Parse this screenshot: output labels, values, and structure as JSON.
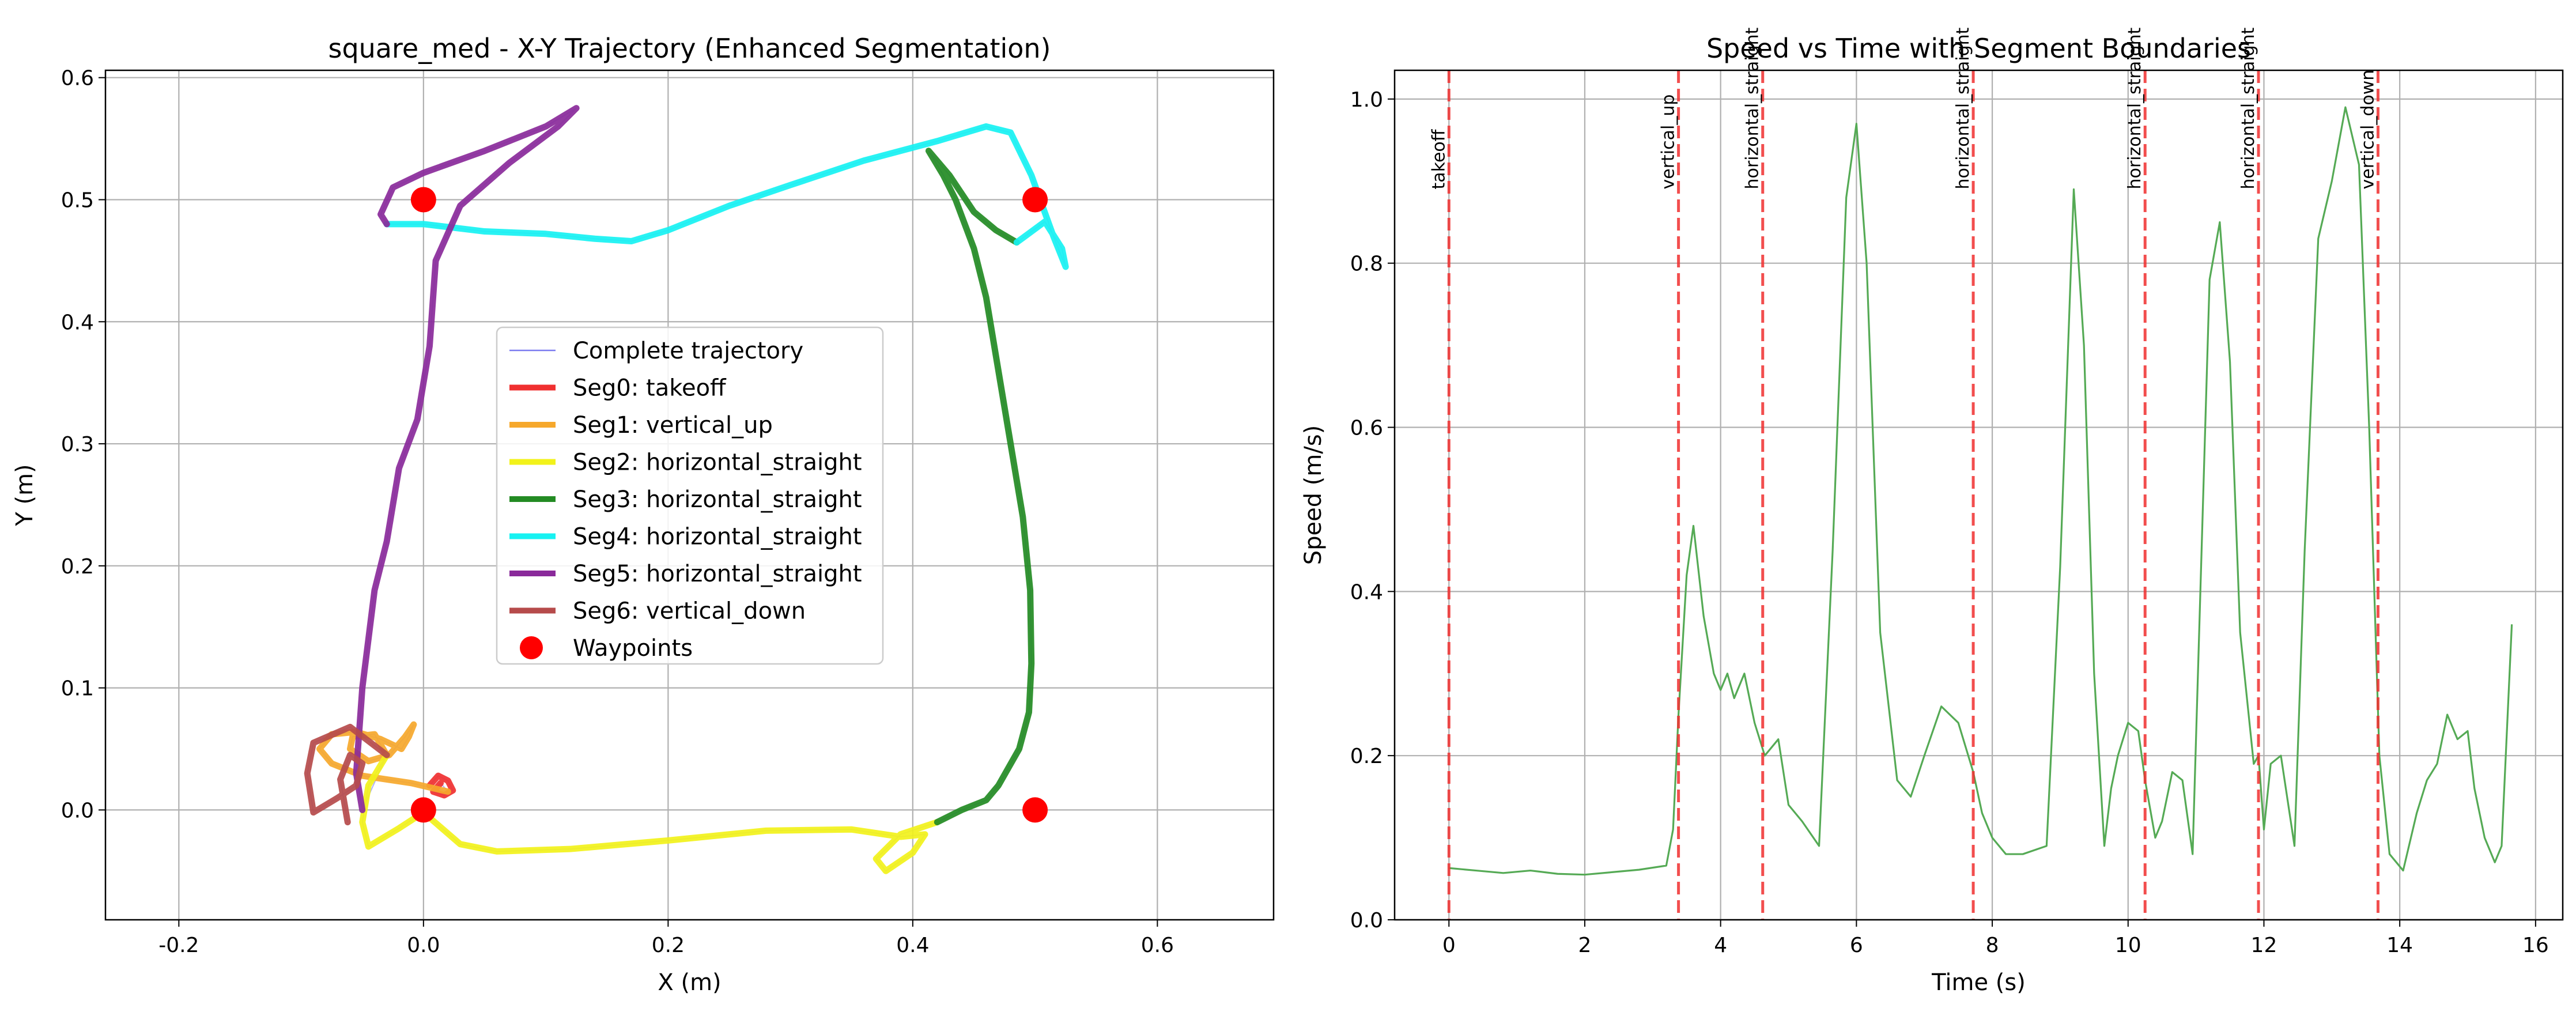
{
  "chart_data": [
    {
      "type": "line",
      "title": "square_med - X-Y Trajectory (Enhanced Segmentation)",
      "xlabel": "X (m)",
      "ylabel": "Y (m)",
      "xlim": [
        -0.26,
        0.695
      ],
      "ylim": [
        -0.09,
        0.606
      ],
      "xticks": [
        -0.2,
        0.0,
        0.2,
        0.4,
        0.6
      ],
      "yticks": [
        0.0,
        0.1,
        0.2,
        0.3,
        0.4,
        0.5,
        0.6
      ],
      "grid": true,
      "legend_position": "center",
      "legend": [
        "Complete trajectory",
        "Seg0: takeoff",
        "Seg1: vertical_up",
        "Seg2: horizontal_straight",
        "Seg3: horizontal_straight",
        "Seg4: horizontal_straight",
        "Seg5: horizontal_straight",
        "Seg6: vertical_down",
        "Waypoints"
      ],
      "complete_trajectory_color": "#7b7bf0",
      "series": [
        {
          "color": "#f03030",
          "points": [
            [
              0.005,
              0.02
            ],
            [
              0.012,
              0.028
            ],
            [
              0.02,
              0.024
            ],
            [
              0.024,
              0.016
            ],
            [
              0.017,
              0.012
            ],
            [
              0.008,
              0.015
            ],
            [
              0.014,
              0.022
            ]
          ]
        },
        {
          "color": "#f6a82b",
          "points": [
            [
              0.02,
              0.015
            ],
            [
              -0.01,
              0.022
            ],
            [
              -0.05,
              0.028
            ],
            [
              -0.075,
              0.038
            ],
            [
              -0.085,
              0.05
            ],
            [
              -0.075,
              0.062
            ],
            [
              -0.055,
              0.064
            ],
            [
              -0.035,
              0.058
            ],
            [
              -0.018,
              0.05
            ],
            [
              -0.012,
              0.06
            ],
            [
              -0.008,
              0.07
            ],
            [
              -0.015,
              0.06
            ],
            [
              -0.028,
              0.045
            ],
            [
              -0.045,
              0.04
            ],
            [
              -0.06,
              0.05
            ],
            [
              -0.058,
              0.06
            ],
            [
              -0.04,
              0.062
            ],
            [
              -0.03,
              0.045
            ]
          ]
        },
        {
          "color": "#f2f21a",
          "points": [
            [
              -0.03,
              0.045
            ],
            [
              -0.045,
              0.02
            ],
            [
              -0.05,
              -0.01
            ],
            [
              -0.045,
              -0.03
            ],
            [
              -0.02,
              -0.015
            ],
            [
              0.0,
              -0.002
            ],
            [
              0.03,
              -0.028
            ],
            [
              0.06,
              -0.034
            ],
            [
              0.12,
              -0.032
            ],
            [
              0.2,
              -0.025
            ],
            [
              0.28,
              -0.017
            ],
            [
              0.35,
              -0.016
            ],
            [
              0.39,
              -0.022
            ],
            [
              0.41,
              -0.02
            ],
            [
              0.4,
              -0.035
            ],
            [
              0.378,
              -0.05
            ],
            [
              0.37,
              -0.04
            ],
            [
              0.39,
              -0.02
            ],
            [
              0.42,
              -0.01
            ]
          ]
        },
        {
          "color": "#238b23",
          "points": [
            [
              0.42,
              -0.01
            ],
            [
              0.44,
              0.0
            ],
            [
              0.46,
              0.008
            ],
            [
              0.47,
              0.02
            ],
            [
              0.487,
              0.05
            ],
            [
              0.495,
              0.08
            ],
            [
              0.497,
              0.12
            ],
            [
              0.496,
              0.18
            ],
            [
              0.49,
              0.24
            ],
            [
              0.48,
              0.3
            ],
            [
              0.47,
              0.36
            ],
            [
              0.46,
              0.42
            ],
            [
              0.45,
              0.46
            ],
            [
              0.435,
              0.5
            ],
            [
              0.425,
              0.52
            ],
            [
              0.413,
              0.54
            ],
            [
              0.43,
              0.52
            ],
            [
              0.45,
              0.49
            ],
            [
              0.468,
              0.475
            ],
            [
              0.485,
              0.465
            ]
          ]
        },
        {
          "color": "#17f2f2",
          "points": [
            [
              0.485,
              0.465
            ],
            [
              0.508,
              0.482
            ],
            [
              0.522,
              0.46
            ],
            [
              0.525,
              0.445
            ],
            [
              0.515,
              0.47
            ],
            [
              0.497,
              0.52
            ],
            [
              0.48,
              0.555
            ],
            [
              0.46,
              0.56
            ],
            [
              0.42,
              0.548
            ],
            [
              0.36,
              0.532
            ],
            [
              0.3,
              0.512
            ],
            [
              0.25,
              0.495
            ],
            [
              0.2,
              0.475
            ],
            [
              0.17,
              0.466
            ],
            [
              0.14,
              0.468
            ],
            [
              0.1,
              0.472
            ],
            [
              0.05,
              0.474
            ],
            [
              0.0,
              0.48
            ],
            [
              -0.03,
              0.48
            ]
          ]
        },
        {
          "color": "#8a2a9a",
          "points": [
            [
              -0.03,
              0.48
            ],
            [
              -0.035,
              0.488
            ],
            [
              -0.025,
              0.51
            ],
            [
              0.0,
              0.522
            ],
            [
              0.05,
              0.54
            ],
            [
              0.1,
              0.56
            ],
            [
              0.125,
              0.575
            ],
            [
              0.11,
              0.56
            ],
            [
              0.07,
              0.53
            ],
            [
              0.03,
              0.495
            ],
            [
              0.01,
              0.45
            ],
            [
              0.005,
              0.38
            ],
            [
              -0.005,
              0.32
            ],
            [
              -0.02,
              0.28
            ],
            [
              -0.03,
              0.22
            ],
            [
              -0.04,
              0.18
            ],
            [
              -0.05,
              0.1
            ],
            [
              -0.055,
              0.03
            ],
            [
              -0.05,
              0.0
            ]
          ]
        },
        {
          "color": "#b64b4b",
          "points": [
            [
              -0.03,
              0.045
            ],
            [
              -0.06,
              0.068
            ],
            [
              -0.09,
              0.055
            ],
            [
              -0.095,
              0.03
            ],
            [
              -0.09,
              -0.002
            ],
            [
              -0.07,
              0.01
            ],
            [
              -0.055,
              0.02
            ],
            [
              -0.05,
              0.038
            ],
            [
              -0.06,
              0.045
            ],
            [
              -0.068,
              0.025
            ],
            [
              -0.062,
              -0.01
            ]
          ]
        }
      ],
      "waypoints": [
        [
          0,
          0
        ],
        [
          0,
          0.5
        ],
        [
          0.5,
          0.5
        ],
        [
          0.5,
          0
        ]
      ],
      "waypoint_color": "#ff0000"
    },
    {
      "type": "line",
      "title": "Speed vs Time with Segment Boundaries",
      "xlabel": "Time (s)",
      "ylabel": "Speed (m/s)",
      "xlim": [
        -0.8,
        16.4
      ],
      "ylim": [
        0.0,
        1.035
      ],
      "xticks": [
        0,
        2,
        4,
        6,
        8,
        10,
        12,
        14,
        16
      ],
      "yticks": [
        0.0,
        0.2,
        0.4,
        0.6,
        0.8,
        1.0
      ],
      "grid": true,
      "line_color": "#55aa55",
      "boundary_color": "#f03030",
      "boundaries": [
        {
          "t": 0.0,
          "label": "takeoff"
        },
        {
          "t": 3.38,
          "label": "vertical_up"
        },
        {
          "t": 4.62,
          "label": "horizontal_straight"
        },
        {
          "t": 7.72,
          "label": "horizontal_straight"
        },
        {
          "t": 10.25,
          "label": "horizontal_straight"
        },
        {
          "t": 11.92,
          "label": "horizontal_straight"
        },
        {
          "t": 13.68,
          "label": "vertical_down"
        }
      ],
      "x": [
        0.0,
        0.4,
        0.8,
        1.2,
        1.6,
        2.0,
        2.4,
        2.8,
        3.2,
        3.3,
        3.38,
        3.5,
        3.6,
        3.75,
        3.9,
        4.0,
        4.1,
        4.2,
        4.35,
        4.5,
        4.65,
        4.85,
        5.0,
        5.2,
        5.45,
        5.65,
        5.85,
        6.0,
        6.15,
        6.35,
        6.6,
        6.8,
        7.0,
        7.25,
        7.5,
        7.72,
        7.85,
        8.0,
        8.2,
        8.45,
        8.8,
        9.0,
        9.2,
        9.35,
        9.5,
        9.65,
        9.75,
        9.85,
        10.0,
        10.15,
        10.25,
        10.4,
        10.5,
        10.65,
        10.8,
        10.95,
        11.1,
        11.2,
        11.35,
        11.5,
        11.65,
        11.85,
        11.92,
        12.0,
        12.1,
        12.25,
        12.45,
        12.6,
        12.8,
        13.0,
        13.2,
        13.4,
        13.55,
        13.7,
        13.85,
        14.05,
        14.25,
        14.4,
        14.55,
        14.7,
        14.85,
        15.0,
        15.1,
        15.25,
        15.4,
        15.5,
        15.65
      ],
      "y": [
        0.063,
        0.06,
        0.057,
        0.06,
        0.056,
        0.055,
        0.058,
        0.061,
        0.066,
        0.11,
        0.25,
        0.42,
        0.48,
        0.37,
        0.3,
        0.28,
        0.3,
        0.27,
        0.3,
        0.24,
        0.2,
        0.22,
        0.14,
        0.12,
        0.09,
        0.45,
        0.88,
        0.97,
        0.8,
        0.35,
        0.17,
        0.15,
        0.2,
        0.26,
        0.24,
        0.18,
        0.13,
        0.1,
        0.08,
        0.08,
        0.09,
        0.43,
        0.89,
        0.7,
        0.3,
        0.09,
        0.16,
        0.2,
        0.24,
        0.23,
        0.17,
        0.1,
        0.12,
        0.18,
        0.17,
        0.08,
        0.5,
        0.78,
        0.85,
        0.68,
        0.35,
        0.19,
        0.2,
        0.11,
        0.19,
        0.2,
        0.09,
        0.45,
        0.83,
        0.9,
        0.99,
        0.92,
        0.6,
        0.2,
        0.08,
        0.06,
        0.13,
        0.17,
        0.19,
        0.25,
        0.22,
        0.23,
        0.16,
        0.1,
        0.07,
        0.09,
        0.36
      ]
    }
  ]
}
